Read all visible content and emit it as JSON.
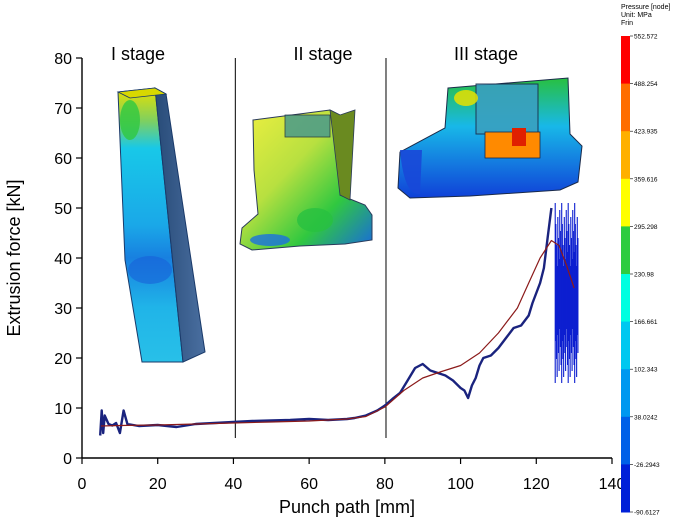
{
  "chart_data": {
    "type": "line",
    "xlabel": "Punch path [mm]",
    "ylabel": "Extrusion force [kN]",
    "xlim": [
      0,
      140
    ],
    "ylim": [
      0,
      80
    ],
    "x_ticks": [
      "0",
      "20",
      "40",
      "60",
      "80",
      "100",
      "120",
      "140"
    ],
    "y_ticks": [
      "0",
      "10",
      "20",
      "30",
      "40",
      "50",
      "60",
      "70",
      "80"
    ],
    "grid": false,
    "stage_boundaries": [
      40.5,
      80.3
    ],
    "stage_labels": [
      "I stage",
      "II stage",
      "III stage"
    ],
    "series": [
      {
        "color": "#1a237e",
        "x": [
          4.8,
          5.2,
          5.6,
          6.0,
          7.0,
          8.0,
          9.0,
          10.0,
          11.0,
          12.0,
          15,
          20,
          25,
          30,
          35,
          40,
          45,
          50,
          55,
          60,
          65,
          70,
          72,
          75,
          78,
          80,
          82,
          84,
          86,
          88,
          90,
          92,
          94,
          96,
          98,
          100,
          101,
          102,
          103,
          104,
          105,
          106,
          108,
          110,
          112,
          114,
          116,
          118,
          119,
          120,
          121,
          122,
          123,
          124
        ],
        "y": [
          4.5,
          9.5,
          5.0,
          8.5,
          6.8,
          6.5,
          7.0,
          5.0,
          9.5,
          6.8,
          6.4,
          6.6,
          6.2,
          6.8,
          7.0,
          7.2,
          7.4,
          7.5,
          7.6,
          7.8,
          7.6,
          7.8,
          8.0,
          8.5,
          9.5,
          10.5,
          11.8,
          13.0,
          15.5,
          18.0,
          18.8,
          17.5,
          17.0,
          16.5,
          15.5,
          14.0,
          13.5,
          12.0,
          14.5,
          16.0,
          18.5,
          20.0,
          20.5,
          22.0,
          24.0,
          26.0,
          26.5,
          28.5,
          31.0,
          33.0,
          35.0,
          38.0,
          44.0,
          50.0
        ]
      },
      {
        "color": "#8b1a1a",
        "x": [
          5,
          10,
          20,
          30,
          40,
          50,
          60,
          70,
          75,
          80,
          85,
          90,
          95,
          100,
          105,
          110,
          115,
          118,
          121,
          124,
          126,
          128,
          130
        ],
        "y": [
          6.4,
          6.5,
          6.6,
          6.8,
          7.0,
          7.2,
          7.4,
          7.8,
          8.3,
          10.2,
          13.5,
          16.0,
          17.3,
          18.5,
          21.0,
          25.0,
          30.0,
          35.0,
          40.0,
          43.5,
          42.5,
          38.5,
          34.0
        ]
      }
    ],
    "oscillation_band": {
      "x_range": [
        125.0,
        131.0
      ],
      "y_range": [
        15.0,
        51.0
      ]
    }
  },
  "colorbar": {
    "title": [
      "Pressure [node]",
      "Unit: MPa",
      "Frin"
    ],
    "labels": [
      "552.572",
      "488.254",
      "423.935",
      "359.616",
      "295.298",
      "230.98",
      "166.661",
      "102.343",
      "38.0242",
      "-26.2943",
      "-90.6127"
    ],
    "colors": [
      "#ff0000",
      "#ff6d00",
      "#ffb000",
      "#ffff00",
      "#2ecc40",
      "#00ffe0",
      "#00c8f0",
      "#0098f0",
      "#0060e8",
      "#0020d8"
    ]
  }
}
